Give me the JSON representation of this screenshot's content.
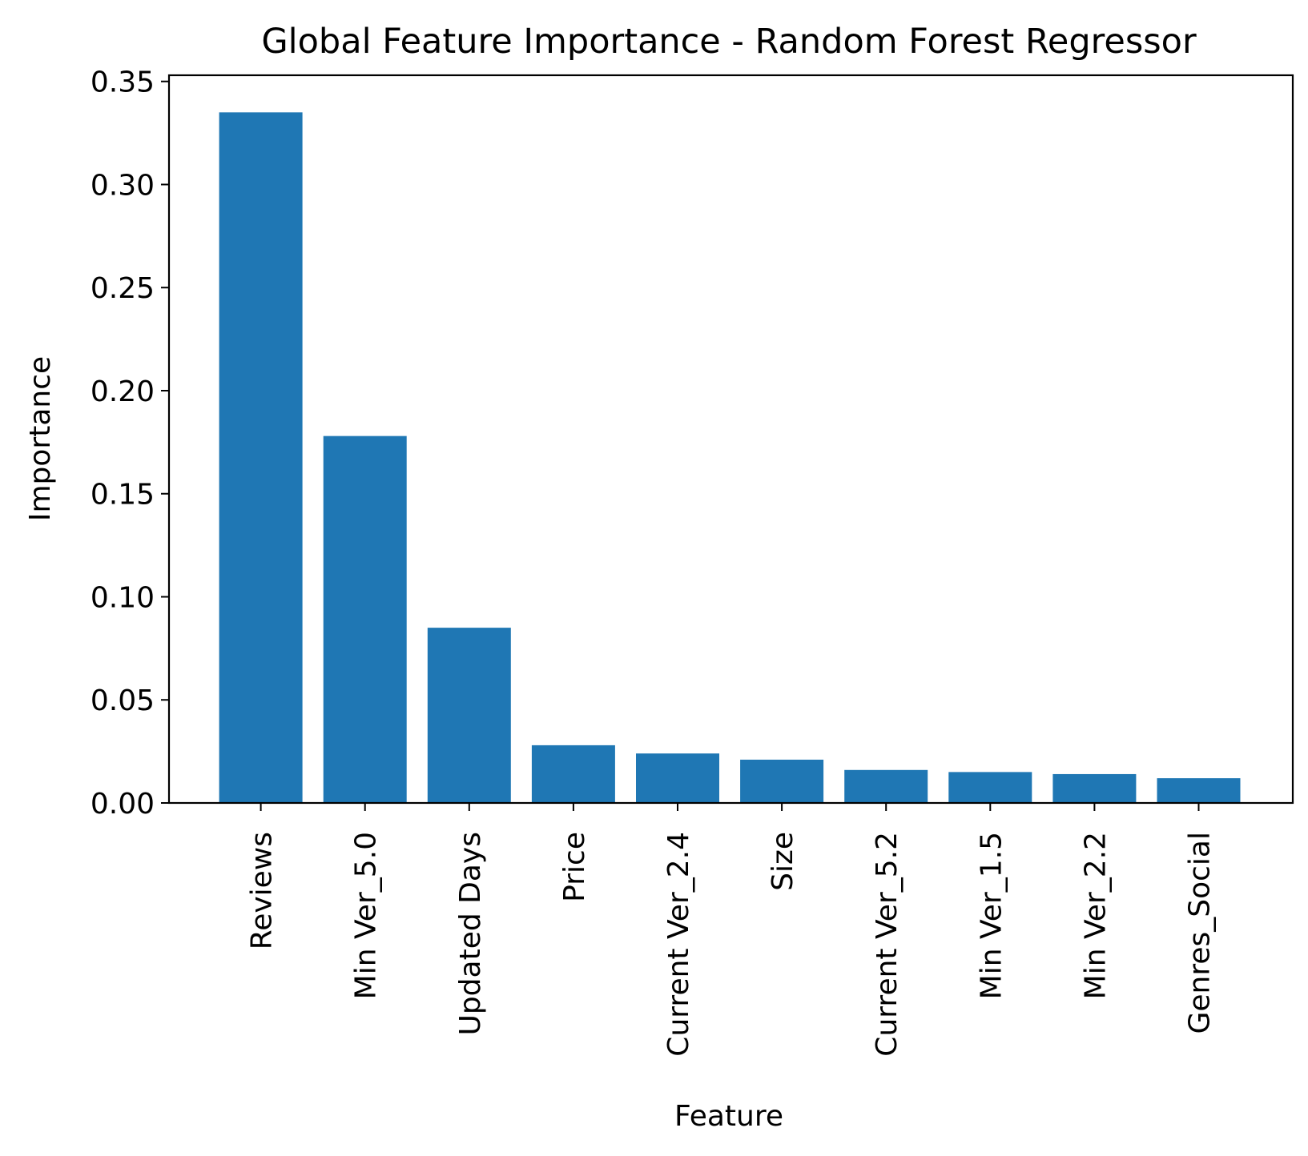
{
  "chart_data": {
    "type": "bar",
    "title": "Global Feature Importance - Random Forest Regressor",
    "xlabel": "Feature",
    "ylabel": "Importance",
    "categories": [
      "Reviews",
      "Min Ver_5.0",
      "Updated Days",
      "Price",
      "Current Ver_2.4",
      "Size",
      "Current Ver_5.2",
      "Min Ver_1.5",
      "Min Ver_2.2",
      "Genres_Social"
    ],
    "values": [
      0.335,
      0.178,
      0.085,
      0.028,
      0.024,
      0.021,
      0.016,
      0.015,
      0.014,
      0.012
    ],
    "ylim": [
      0,
      0.353
    ],
    "yticks": [
      "0.00",
      "0.05",
      "0.10",
      "0.15",
      "0.20",
      "0.25",
      "0.30",
      "0.35"
    ],
    "ytick_values": [
      0,
      0.05,
      0.1,
      0.15,
      0.2,
      0.25,
      0.3,
      0.35
    ],
    "grid": false,
    "legend": "none",
    "bar_color": "#1f77b4"
  }
}
